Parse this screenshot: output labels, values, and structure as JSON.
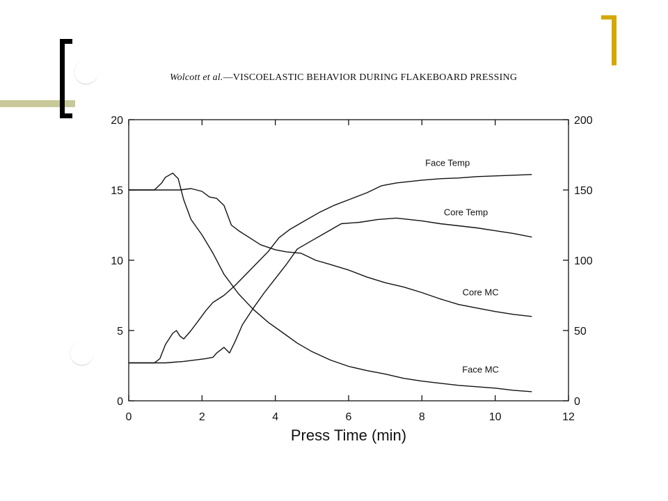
{
  "slide": {
    "header_authors": "Wolcott et al.",
    "header_separator": "—",
    "header_title": "VISCOELASTIC BEHAVIOR DURING FLAKEBOARD PRESSING"
  },
  "chart_data": {
    "type": "line",
    "title": "",
    "xlabel": "Press Time (min)",
    "ylabel": "",
    "ylabel_right": "",
    "xlim": [
      0,
      12
    ],
    "ylim": [
      0,
      20
    ],
    "ylim_right": [
      0,
      200
    ],
    "x_ticks": [
      "0",
      "2",
      "4",
      "6",
      "8",
      "10",
      "12"
    ],
    "y_ticks_left": [
      "0",
      "5",
      "10",
      "15",
      "20"
    ],
    "y_ticks_right": [
      "0",
      "50",
      "100",
      "150",
      "200"
    ],
    "grid": false,
    "legend": "none",
    "series": [
      {
        "name": "Face Temp",
        "axis": "right",
        "label_at": [
          8.7,
          167
        ],
        "points": [
          [
            0,
            27
          ],
          [
            0.7,
            27
          ],
          [
            0.85,
            30
          ],
          [
            1.0,
            40
          ],
          [
            1.2,
            48
          ],
          [
            1.3,
            50
          ],
          [
            1.4,
            46
          ],
          [
            1.5,
            44
          ],
          [
            1.6,
            47
          ],
          [
            1.7,
            50
          ],
          [
            1.9,
            57
          ],
          [
            2.1,
            64
          ],
          [
            2.3,
            70
          ],
          [
            2.6,
            75
          ],
          [
            2.9,
            82
          ],
          [
            3.2,
            90
          ],
          [
            3.5,
            98
          ],
          [
            3.8,
            106
          ],
          [
            4.1,
            116
          ],
          [
            4.4,
            122
          ],
          [
            4.8,
            128
          ],
          [
            5.2,
            134
          ],
          [
            5.6,
            139
          ],
          [
            6.0,
            143
          ],
          [
            6.5,
            148
          ],
          [
            6.9,
            153
          ],
          [
            7.3,
            155
          ],
          [
            8.0,
            157
          ],
          [
            8.5,
            158
          ],
          [
            9.0,
            158.5
          ],
          [
            9.5,
            159.5
          ],
          [
            10.0,
            160
          ],
          [
            10.5,
            160.5
          ],
          [
            11.0,
            161
          ]
        ]
      },
      {
        "name": "Core Temp",
        "axis": "right",
        "label_at": [
          9.2,
          132
        ],
        "points": [
          [
            0,
            27
          ],
          [
            1.0,
            27
          ],
          [
            1.5,
            28
          ],
          [
            1.8,
            29
          ],
          [
            2.1,
            30
          ],
          [
            2.3,
            31
          ],
          [
            2.4,
            34
          ],
          [
            2.6,
            38
          ],
          [
            2.75,
            34
          ],
          [
            2.9,
            42
          ],
          [
            3.1,
            54
          ],
          [
            3.4,
            66
          ],
          [
            3.7,
            77
          ],
          [
            4.0,
            87
          ],
          [
            4.3,
            97
          ],
          [
            4.6,
            108
          ],
          [
            5.0,
            114
          ],
          [
            5.4,
            120
          ],
          [
            5.8,
            126
          ],
          [
            6.3,
            127
          ],
          [
            6.8,
            129
          ],
          [
            7.3,
            130
          ],
          [
            8.0,
            128
          ],
          [
            8.5,
            126
          ],
          [
            9.0,
            124.5
          ],
          [
            9.5,
            123
          ],
          [
            10.0,
            121
          ],
          [
            10.5,
            119
          ],
          [
            11.0,
            116.5
          ]
        ]
      },
      {
        "name": "Core MC",
        "axis": "left",
        "label_at": [
          9.6,
          7.5
        ],
        "points": [
          [
            0,
            15
          ],
          [
            1.0,
            15
          ],
          [
            1.4,
            15
          ],
          [
            1.7,
            15.1
          ],
          [
            2.0,
            14.9
          ],
          [
            2.2,
            14.5
          ],
          [
            2.4,
            14.4
          ],
          [
            2.6,
            13.9
          ],
          [
            2.8,
            12.5
          ],
          [
            3.0,
            12.1
          ],
          [
            3.3,
            11.6
          ],
          [
            3.6,
            11.1
          ],
          [
            4.0,
            10.75
          ],
          [
            4.3,
            10.6
          ],
          [
            4.7,
            10.5
          ],
          [
            5.1,
            10.0
          ],
          [
            5.5,
            9.7
          ],
          [
            6.0,
            9.3
          ],
          [
            6.5,
            8.8
          ],
          [
            7.0,
            8.4
          ],
          [
            7.5,
            8.1
          ],
          [
            8.0,
            7.7
          ],
          [
            8.5,
            7.25
          ],
          [
            9.0,
            6.85
          ],
          [
            9.5,
            6.6
          ],
          [
            10.0,
            6.35
          ],
          [
            10.5,
            6.15
          ],
          [
            11.0,
            6.0
          ]
        ]
      },
      {
        "name": "Face MC",
        "axis": "left",
        "label_at": [
          9.6,
          2.0
        ],
        "points": [
          [
            0,
            15
          ],
          [
            0.7,
            15
          ],
          [
            0.9,
            15.5
          ],
          [
            1.0,
            15.9
          ],
          [
            1.2,
            16.2
          ],
          [
            1.35,
            15.8
          ],
          [
            1.5,
            14.3
          ],
          [
            1.7,
            12.9
          ],
          [
            2.0,
            11.8
          ],
          [
            2.3,
            10.5
          ],
          [
            2.6,
            9.0
          ],
          [
            3.0,
            7.6
          ],
          [
            3.4,
            6.5
          ],
          [
            3.8,
            5.6
          ],
          [
            4.2,
            4.85
          ],
          [
            4.6,
            4.1
          ],
          [
            5.0,
            3.5
          ],
          [
            5.5,
            2.9
          ],
          [
            6.0,
            2.45
          ],
          [
            6.5,
            2.15
          ],
          [
            7.0,
            1.9
          ],
          [
            7.5,
            1.6
          ],
          [
            8.0,
            1.4
          ],
          [
            8.5,
            1.25
          ],
          [
            9.0,
            1.1
          ],
          [
            9.5,
            1.0
          ],
          [
            10.0,
            0.9
          ],
          [
            10.5,
            0.75
          ],
          [
            11.0,
            0.65
          ]
        ]
      }
    ]
  }
}
